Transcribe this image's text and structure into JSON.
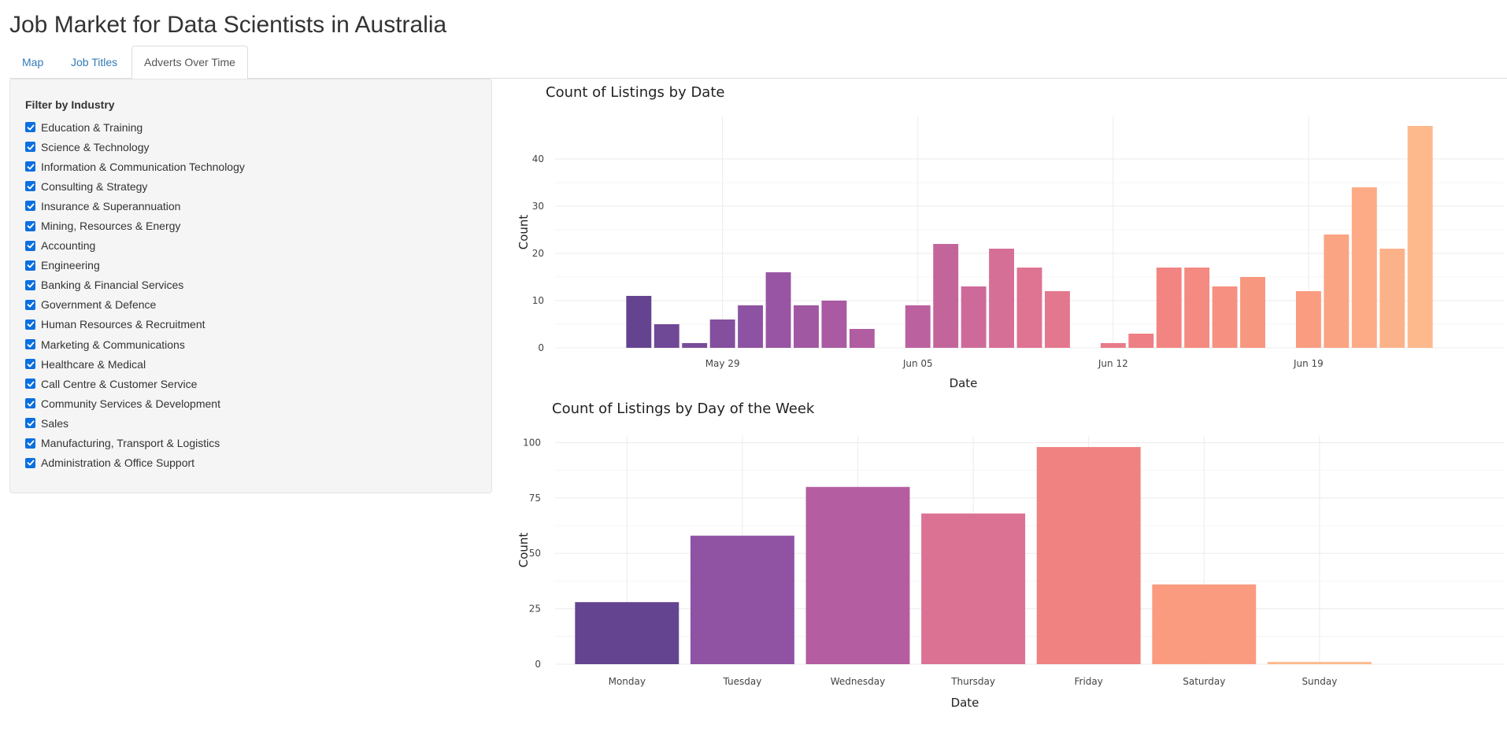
{
  "app": {
    "title": "Job Market for Data Scientists in Australia"
  },
  "tabs": [
    {
      "label": "Map",
      "active": false
    },
    {
      "label": "Job Titles",
      "active": false
    },
    {
      "label": "Adverts Over Time",
      "active": true
    }
  ],
  "filter": {
    "label": "Filter by Industry",
    "options": [
      {
        "label": "Education & Training",
        "checked": true
      },
      {
        "label": "Science & Technology",
        "checked": true
      },
      {
        "label": "Information & Communication Technology",
        "checked": true
      },
      {
        "label": "Consulting & Strategy",
        "checked": true
      },
      {
        "label": "Insurance & Superannuation",
        "checked": true
      },
      {
        "label": "Mining, Resources & Energy",
        "checked": true
      },
      {
        "label": "Accounting",
        "checked": true
      },
      {
        "label": "Engineering",
        "checked": true
      },
      {
        "label": "Banking & Financial Services",
        "checked": true
      },
      {
        "label": "Government & Defence",
        "checked": true
      },
      {
        "label": "Human Resources & Recruitment",
        "checked": true
      },
      {
        "label": "Marketing & Communications",
        "checked": true
      },
      {
        "label": "Healthcare & Medical",
        "checked": true
      },
      {
        "label": "Call Centre & Customer Service",
        "checked": true
      },
      {
        "label": "Community Services & Development",
        "checked": true
      },
      {
        "label": "Sales",
        "checked": true
      },
      {
        "label": "Manufacturing, Transport & Logistics",
        "checked": true
      },
      {
        "label": "Administration & Office Support",
        "checked": true
      }
    ]
  },
  "colors": {
    "accent": "#0b6fe0",
    "grid": "#ebebeb",
    "palette_start": "#5c3a8b",
    "palette_end": "#fdb585"
  },
  "chart_data": [
    {
      "type": "bar",
      "title": "Count of Listings by Date",
      "xlabel": "Date",
      "ylabel": "Count",
      "ylim": [
        0,
        49
      ],
      "xlim": [
        "2022-05-23",
        "2022-06-26"
      ],
      "yticks": [
        0,
        10,
        20,
        30,
        40
      ],
      "xticks": [
        {
          "date": "2022-05-29",
          "label": "May 29"
        },
        {
          "date": "2022-06-05",
          "label": "Jun 05"
        },
        {
          "date": "2022-06-12",
          "label": "Jun 12"
        },
        {
          "date": "2022-06-19",
          "label": "Jun 19"
        }
      ],
      "grid": true,
      "dates": [
        "2022-05-26",
        "2022-05-27",
        "2022-05-28",
        "2022-05-29",
        "2022-05-30",
        "2022-05-31",
        "2022-06-01",
        "2022-06-02",
        "2022-06-03",
        "2022-06-05",
        "2022-06-06",
        "2022-06-07",
        "2022-06-08",
        "2022-06-09",
        "2022-06-10",
        "2022-06-12",
        "2022-06-13",
        "2022-06-14",
        "2022-06-15",
        "2022-06-16",
        "2022-06-17",
        "2022-06-19",
        "2022-06-20",
        "2022-06-21",
        "2022-06-22",
        "2022-06-23"
      ],
      "values": [
        11,
        5,
        1,
        6,
        9,
        16,
        9,
        10,
        4,
        9,
        22,
        13,
        21,
        17,
        12,
        1,
        3,
        17,
        17,
        13,
        15,
        12,
        24,
        34,
        21,
        47
      ]
    },
    {
      "type": "bar",
      "title": "Count of Listings by Day of the Week",
      "xlabel": "Date",
      "ylabel": "Count",
      "ylim": [
        0,
        103
      ],
      "yticks": [
        0,
        25,
        50,
        75,
        100
      ],
      "grid": true,
      "categories": [
        "Monday",
        "Tuesday",
        "Wednesday",
        "Thursday",
        "Friday",
        "Saturday",
        "Sunday"
      ],
      "values": [
        28,
        58,
        80,
        68,
        98,
        36,
        1
      ]
    }
  ]
}
